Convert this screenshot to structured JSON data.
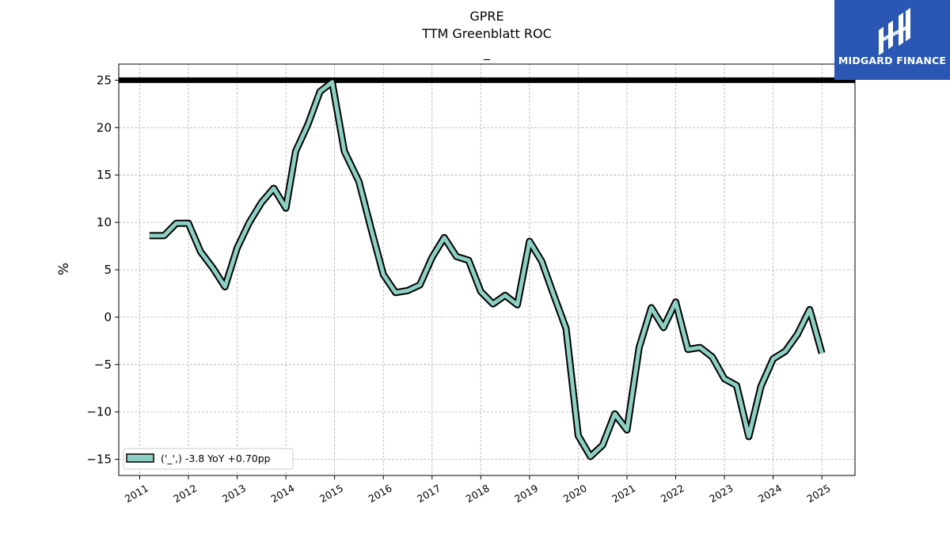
{
  "logo": {
    "text": "MIDGARD FINANCE"
  },
  "chart_data": {
    "type": "line",
    "title": "GPRE",
    "subtitle": "TTM Greenblatt ROC",
    "subtitle2": "_",
    "xlabel": "",
    "ylabel": "%",
    "xlim": [
      2010.57,
      2025.68
    ],
    "ylim": [
      -16.7,
      26.7
    ],
    "x_ticks": [
      "2011",
      "2012",
      "2013",
      "2014",
      "2015",
      "2016",
      "2017",
      "2018",
      "2019",
      "2020",
      "2021",
      "2022",
      "2023",
      "2024",
      "2025"
    ],
    "y_ticks": [
      25,
      20,
      15,
      10,
      5,
      0,
      -5,
      -10,
      -15
    ],
    "grid": true,
    "legend_position": "lower-left",
    "reference_line": {
      "y": 25,
      "color": "#000000"
    },
    "series": [
      {
        "name": "('_',) -3.8 YoY +0.70pp",
        "color": "#8ecfc3",
        "edge_color": "#000000",
        "x": [
          2011.2,
          2011.5,
          2011.75,
          2012.0,
          2012.25,
          2012.5,
          2012.75,
          2013.0,
          2013.25,
          2013.5,
          2013.75,
          2014.0,
          2014.2,
          2014.45,
          2014.7,
          2014.95,
          2015.2,
          2015.5,
          2015.75,
          2016.0,
          2016.25,
          2016.5,
          2016.75,
          2017.0,
          2017.25,
          2017.5,
          2017.75,
          2018.0,
          2018.25,
          2018.5,
          2018.75,
          2019.0,
          2019.25,
          2019.5,
          2019.75,
          2020.0,
          2020.25,
          2020.5,
          2020.75,
          2021.0,
          2021.25,
          2021.5,
          2021.75,
          2022.0,
          2022.25,
          2022.5,
          2022.75,
          2023.0,
          2023.25,
          2023.5,
          2023.75,
          2024.0,
          2024.25,
          2024.5,
          2024.75,
          2025.0
        ],
        "values": [
          8.6,
          8.6,
          9.9,
          9.9,
          6.9,
          5.2,
          3.2,
          7.3,
          10.0,
          12.1,
          13.6,
          11.5,
          17.5,
          20.3,
          23.8,
          24.8,
          17.5,
          14.3,
          9.3,
          4.5,
          2.6,
          2.8,
          3.4,
          6.3,
          8.4,
          6.4,
          6.0,
          2.7,
          1.4,
          2.3,
          1.3,
          8.0,
          5.9,
          2.3,
          -1.2,
          -12.5,
          -14.7,
          -13.5,
          -10.2,
          -11.9,
          -3.2,
          1.0,
          -1.1,
          1.6,
          -3.4,
          -3.2,
          -4.2,
          -6.5,
          -7.2,
          -12.6,
          -7.3,
          -4.4,
          -3.6,
          -1.8,
          0.8,
          -3.8
        ]
      }
    ]
  }
}
